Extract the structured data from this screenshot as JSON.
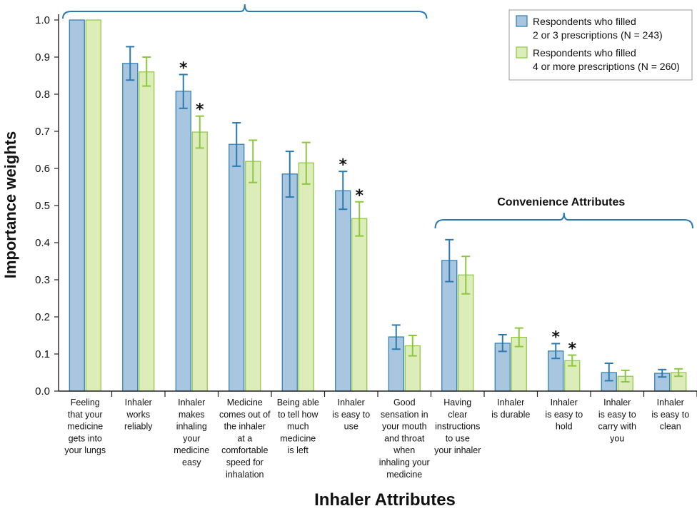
{
  "chart_data": {
    "type": "bar",
    "xlabel": "Inhaler Attributes",
    "ylabel": "Importance weights",
    "ylim": [
      0,
      1.0
    ],
    "yticks": [
      "0.0",
      "0.1",
      "0.2",
      "0.3",
      "0.4",
      "0.5",
      "0.6",
      "0.7",
      "0.8",
      "0.9",
      "1.0"
    ],
    "grid": false,
    "legend_position": "top-right",
    "categories": [
      [
        "Feeling",
        "that your",
        "medicine",
        "gets into",
        "your lungs"
      ],
      [
        "Inhaler",
        "works",
        "reliably"
      ],
      [
        "Inhaler",
        "makes",
        "inhaling",
        "your",
        "medicine",
        "easy"
      ],
      [
        "Medicine",
        "comes out of",
        "the inhaler",
        "at a",
        "comfortable",
        "speed for",
        "inhalation"
      ],
      [
        "Being able",
        "to tell how",
        "much",
        "medicine",
        "is left"
      ],
      [
        "Inhaler",
        "is easy to",
        "use"
      ],
      [
        "Good",
        "sensation in",
        "your mouth",
        "and throat",
        "when",
        "inhaling your",
        "medicine"
      ],
      [
        "Having",
        "clear",
        "instructions",
        "to use",
        "your inhaler"
      ],
      [
        "Inhaler",
        "is durable"
      ],
      [
        "Inhaler",
        "is easy to",
        "hold"
      ],
      [
        "Inhaler",
        "is easy to",
        "carry with",
        "you"
      ],
      [
        "Inhaler",
        "is easy to",
        "clean"
      ]
    ],
    "series": [
      {
        "name": [
          "Respondents who filled",
          "2 or 3 prescriptions (N = 243)"
        ],
        "color": "#a9c6e0",
        "border": "#2a7ab0",
        "values": [
          1.0,
          0.883,
          0.808,
          0.665,
          0.585,
          0.54,
          0.146,
          0.352,
          0.129,
          0.108,
          0.05,
          0.048
        ],
        "err_low": [
          null,
          0.838,
          0.762,
          0.606,
          0.523,
          0.49,
          0.113,
          0.295,
          0.107,
          0.088,
          0.028,
          0.038
        ],
        "err_high": [
          null,
          0.928,
          0.853,
          0.723,
          0.646,
          0.592,
          0.178,
          0.408,
          0.152,
          0.128,
          0.075,
          0.058
        ],
        "significant": [
          false,
          false,
          true,
          false,
          false,
          true,
          false,
          false,
          false,
          true,
          false,
          false
        ]
      },
      {
        "name": [
          "Respondents who filled",
          "4 or more prescriptions (N = 260)"
        ],
        "color": "#dcedb9",
        "border": "#8dc63f",
        "values": [
          1.0,
          0.86,
          0.698,
          0.619,
          0.615,
          0.465,
          0.122,
          0.313,
          0.145,
          0.082,
          0.04,
          0.05
        ],
        "err_low": [
          null,
          0.822,
          0.655,
          0.562,
          0.558,
          0.418,
          0.095,
          0.262,
          0.12,
          0.068,
          0.025,
          0.04
        ],
        "err_high": [
          null,
          0.9,
          0.741,
          0.676,
          0.67,
          0.51,
          0.15,
          0.363,
          0.17,
          0.097,
          0.056,
          0.06
        ],
        "significant": [
          false,
          false,
          true,
          false,
          false,
          true,
          false,
          false,
          false,
          true,
          false,
          false
        ]
      }
    ],
    "significance_marker": "*",
    "annotations": [
      {
        "label": "",
        "from_category": 0,
        "to_category": 6
      },
      {
        "label": "Convenience Attributes",
        "from_category": 7,
        "to_category": 11
      }
    ]
  }
}
